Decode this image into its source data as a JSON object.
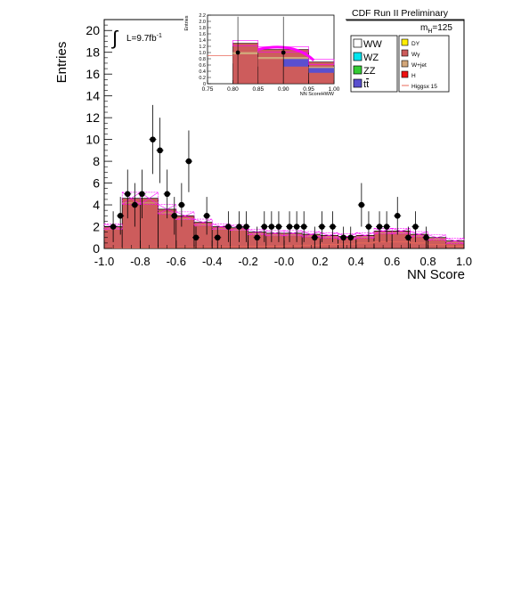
{
  "chart_data": [
    {
      "type": "bar",
      "variant": "stacked-histogram-with-data-points",
      "xlabel": "NN Score",
      "ylabel": "Entries",
      "xlim": [
        -1.0,
        1.0
      ],
      "ylim": [
        0,
        21
      ],
      "x_ticks": [
        "-1.0",
        "-0.8",
        "-0.6",
        "-0.4",
        "-0.2",
        "-0.0",
        "0.2",
        "0.4",
        "0.6",
        "0.8",
        "1.0"
      ],
      "y_ticks": [
        "0",
        "2",
        "4",
        "6",
        "8",
        "10",
        "12",
        "14",
        "16",
        "18",
        "20"
      ],
      "lumi_prefix": "L=9.7fb",
      "lumi_sup": "-1",
      "header": "CDF Run II Preliminary",
      "mass_prefix": "m",
      "mass_sub": "H",
      "mass_suffix": "=125",
      "bins": [
        -1.0,
        -0.9,
        -0.8,
        -0.7,
        -0.6,
        -0.5,
        -0.4,
        -0.3,
        -0.2,
        -0.1,
        0.0,
        0.1,
        0.2,
        0.3,
        0.4,
        0.5,
        0.6,
        0.7,
        0.8,
        0.9,
        1.0
      ],
      "total_background": [
        2.0,
        4.6,
        4.6,
        3.6,
        3.0,
        2.4,
        2.0,
        1.9,
        1.5,
        1.4,
        1.4,
        1.3,
        1.2,
        1.1,
        1.2,
        1.6,
        1.6,
        1.3,
        1.0,
        0.7
      ],
      "data_points": [
        {
          "x": -0.95,
          "y": 2
        },
        {
          "x": -0.91,
          "y": 3
        },
        {
          "x": -0.87,
          "y": 5
        },
        {
          "x": -0.83,
          "y": 4
        },
        {
          "x": -0.79,
          "y": 5
        },
        {
          "x": -0.73,
          "y": 10
        },
        {
          "x": -0.69,
          "y": 9
        },
        {
          "x": -0.65,
          "y": 5
        },
        {
          "x": -0.61,
          "y": 3
        },
        {
          "x": -0.57,
          "y": 4
        },
        {
          "x": -0.53,
          "y": 8
        },
        {
          "x": -0.49,
          "y": 1
        },
        {
          "x": -0.43,
          "y": 3
        },
        {
          "x": -0.37,
          "y": 1
        },
        {
          "x": -0.31,
          "y": 2
        },
        {
          "x": -0.25,
          "y": 2
        },
        {
          "x": -0.21,
          "y": 2
        },
        {
          "x": -0.15,
          "y": 1
        },
        {
          "x": -0.11,
          "y": 2
        },
        {
          "x": -0.07,
          "y": 2
        },
        {
          "x": -0.03,
          "y": 2
        },
        {
          "x": 0.03,
          "y": 2
        },
        {
          "x": 0.07,
          "y": 2
        },
        {
          "x": 0.11,
          "y": 2
        },
        {
          "x": 0.17,
          "y": 1
        },
        {
          "x": 0.21,
          "y": 2
        },
        {
          "x": 0.27,
          "y": 2
        },
        {
          "x": 0.33,
          "y": 1
        },
        {
          "x": 0.37,
          "y": 1
        },
        {
          "x": 0.43,
          "y": 4
        },
        {
          "x": 0.47,
          "y": 2
        },
        {
          "x": 0.53,
          "y": 2
        },
        {
          "x": 0.57,
          "y": 2
        },
        {
          "x": 0.63,
          "y": 3
        },
        {
          "x": 0.69,
          "y": 1
        },
        {
          "x": 0.73,
          "y": 2
        },
        {
          "x": 0.79,
          "y": 1
        }
      ],
      "higgs_x15": [
        0.05,
        0.05,
        0.06,
        0.07,
        0.09,
        0.1,
        0.12,
        0.15,
        0.18,
        0.2,
        0.25,
        0.3,
        0.35,
        0.4,
        0.5,
        0.6,
        0.6,
        0.5,
        0.35,
        0.2
      ],
      "legend": {
        "col1": [
          "WW",
          "WZ",
          "ZZ",
          "tt"
        ],
        "col2": [
          "DY",
          "Wγ",
          "W+jet",
          "H",
          "Higgsx 15"
        ]
      },
      "colors": {
        "WW": "#ffffff",
        "WZ": "#00e5ee",
        "ZZ": "#33cc33",
        "tt": "#5a4fcf",
        "DY": "#ffee00",
        "Wg": "#cc5c5c",
        "Wjet": "#d2a679",
        "H": "#ee1111",
        "higgs_line": "#e8685a",
        "uncertainty": "#ff00ff",
        "bkg_fill": "#cd5c5c"
      }
    },
    {
      "type": "bar",
      "variant": "inset-ratio",
      "xlabel": "NN ScoreHWW",
      "ylabel": "Entries",
      "xlim": [
        0.75,
        1.0
      ],
      "ylim": [
        0,
        2.2
      ],
      "x_ticks": [
        "0.75",
        "0.80",
        "0.85",
        "0.90",
        "0.95",
        "1.00"
      ],
      "y_ticks": [
        "0",
        "0.2",
        "0.4",
        "0.6",
        "0.8",
        "1.0",
        "1.2",
        "1.4",
        "1.6",
        "1.8",
        "2.0",
        "2.2"
      ],
      "bins": [
        0.8,
        0.85,
        0.9,
        0.95,
        1.0
      ],
      "total_background": [
        1.3,
        1.1,
        1.1,
        0.7
      ],
      "data_points": [
        {
          "x": 0.81,
          "y": 1.0
        },
        {
          "x": 0.9,
          "y": 1.0
        }
      ]
    }
  ]
}
